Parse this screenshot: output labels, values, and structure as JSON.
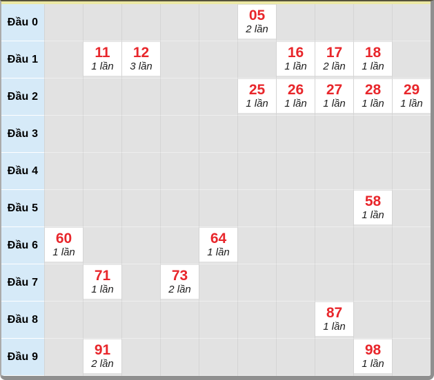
{
  "colors": {
    "number_red": "#e8262b",
    "label_bg": "#d6eaf8",
    "cell_bg": "#e2e2e2",
    "box_bg": "#ffffff",
    "top_band": "#ebe8a4",
    "frame_top": "#56523a",
    "frame_gray": "#8f8f8f"
  },
  "table": {
    "rows": [
      {
        "label": "Đầu 0",
        "cells": [
          {
            "col": 5,
            "number": "05",
            "count_label": "2 lần"
          }
        ]
      },
      {
        "label": "Đầu 1",
        "cells": [
          {
            "col": 1,
            "number": "11",
            "count_label": "1 lần"
          },
          {
            "col": 2,
            "number": "12",
            "count_label": "3 lần"
          },
          {
            "col": 6,
            "number": "16",
            "count_label": "1 lần"
          },
          {
            "col": 7,
            "number": "17",
            "count_label": "2 lần"
          },
          {
            "col": 8,
            "number": "18",
            "count_label": "1 lần"
          }
        ]
      },
      {
        "label": "Đầu 2",
        "cells": [
          {
            "col": 5,
            "number": "25",
            "count_label": "1 lần"
          },
          {
            "col": 6,
            "number": "26",
            "count_label": "1 lần"
          },
          {
            "col": 7,
            "number": "27",
            "count_label": "1 lần"
          },
          {
            "col": 8,
            "number": "28",
            "count_label": "1 lần"
          },
          {
            "col": 9,
            "number": "29",
            "count_label": "1 lần"
          }
        ]
      },
      {
        "label": "Đầu 3",
        "cells": []
      },
      {
        "label": "Đầu 4",
        "cells": []
      },
      {
        "label": "Đầu 5",
        "cells": [
          {
            "col": 8,
            "number": "58",
            "count_label": "1 lần"
          }
        ]
      },
      {
        "label": "Đầu 6",
        "cells": [
          {
            "col": 0,
            "number": "60",
            "count_label": "1 lần"
          },
          {
            "col": 4,
            "number": "64",
            "count_label": "1 lần"
          }
        ]
      },
      {
        "label": "Đầu 7",
        "cells": [
          {
            "col": 1,
            "number": "71",
            "count_label": "1 lần"
          },
          {
            "col": 3,
            "number": "73",
            "count_label": "2 lần"
          }
        ]
      },
      {
        "label": "Đầu 8",
        "cells": [
          {
            "col": 7,
            "number": "87",
            "count_label": "1 lần"
          }
        ]
      },
      {
        "label": "Đầu 9",
        "cells": [
          {
            "col": 1,
            "number": "91",
            "count_label": "2 lần"
          },
          {
            "col": 8,
            "number": "98",
            "count_label": "1 lần"
          }
        ]
      }
    ]
  },
  "chart_data": {
    "type": "table",
    "title": "",
    "row_labels": [
      "Đầu 0",
      "Đầu 1",
      "Đầu 2",
      "Đầu 3",
      "Đầu 4",
      "Đầu 5",
      "Đầu 6",
      "Đầu 7",
      "Đầu 8",
      "Đầu 9"
    ],
    "columns": [
      "0",
      "1",
      "2",
      "3",
      "4",
      "5",
      "6",
      "7",
      "8",
      "9"
    ],
    "entries": [
      {
        "number": "05",
        "row": 0,
        "col": 5,
        "count": 2
      },
      {
        "number": "11",
        "row": 1,
        "col": 1,
        "count": 1
      },
      {
        "number": "12",
        "row": 1,
        "col": 2,
        "count": 3
      },
      {
        "number": "16",
        "row": 1,
        "col": 6,
        "count": 1
      },
      {
        "number": "17",
        "row": 1,
        "col": 7,
        "count": 2
      },
      {
        "number": "18",
        "row": 1,
        "col": 8,
        "count": 1
      },
      {
        "number": "25",
        "row": 2,
        "col": 5,
        "count": 1
      },
      {
        "number": "26",
        "row": 2,
        "col": 6,
        "count": 1
      },
      {
        "number": "27",
        "row": 2,
        "col": 7,
        "count": 1
      },
      {
        "number": "28",
        "row": 2,
        "col": 8,
        "count": 1
      },
      {
        "number": "29",
        "row": 2,
        "col": 9,
        "count": 1
      },
      {
        "number": "58",
        "row": 5,
        "col": 8,
        "count": 1
      },
      {
        "number": "60",
        "row": 6,
        "col": 0,
        "count": 1
      },
      {
        "number": "64",
        "row": 6,
        "col": 4,
        "count": 1
      },
      {
        "number": "71",
        "row": 7,
        "col": 1,
        "count": 1
      },
      {
        "number": "73",
        "row": 7,
        "col": 3,
        "count": 2
      },
      {
        "number": "87",
        "row": 8,
        "col": 7,
        "count": 1
      },
      {
        "number": "91",
        "row": 9,
        "col": 1,
        "count": 2
      },
      {
        "number": "98",
        "row": 9,
        "col": 8,
        "count": 1
      }
    ],
    "count_unit": "lần",
    "layout": {
      "grid": true,
      "label_column": "left",
      "cols_per_row": 10
    }
  }
}
